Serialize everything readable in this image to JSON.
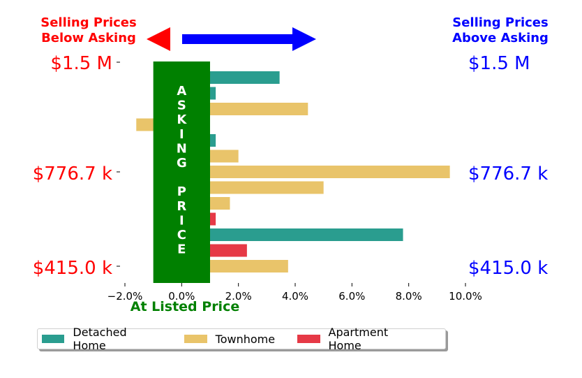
{
  "header": {
    "left_label_line1": "Selling Prices",
    "left_label_line2": "Below Asking",
    "right_label_line1": "Selling Prices",
    "right_label_line2": "Above Asking",
    "left_color": "#ff0000",
    "right_color": "#0000ff"
  },
  "price_axis": {
    "left": [
      "$1.5 M",
      "$776.7 k",
      "$415.0 k"
    ],
    "right": [
      "$1.5 M",
      "$776.7 k",
      "$415.0 k"
    ]
  },
  "asking_band": {
    "text": "ASKING PRICE",
    "color": "#008000",
    "x_range": [
      -1.0,
      1.0
    ]
  },
  "listed_label": "At Listed Price",
  "chart_data": {
    "type": "bar",
    "orientation": "horizontal",
    "xlabel": "",
    "ylabel": "",
    "xlim": [
      -2.0,
      10.0
    ],
    "x_ticks": [
      -2,
      0,
      2,
      4,
      6,
      8,
      10
    ],
    "x_tick_labels": [
      "−2.0%",
      "0.0%",
      "2.0%",
      "4.0%",
      "6.0%",
      "8.0%",
      "10.0%"
    ],
    "grid": false,
    "legend_position": "bottom",
    "bars": [
      {
        "type": "Detached Home",
        "value": 3.45
      },
      {
        "type": "Detached Home",
        "value": 1.2
      },
      {
        "type": "Townhome",
        "value": 4.45
      },
      {
        "type": "Townhome",
        "value": -1.6
      },
      {
        "type": "Detached Home",
        "value": 1.2
      },
      {
        "type": "Townhome",
        "value": 2.0
      },
      {
        "type": "Townhome",
        "value": 9.45
      },
      {
        "type": "Townhome",
        "value": 5.0
      },
      {
        "type": "Townhome",
        "value": 1.7
      },
      {
        "type": "Apartment Home",
        "value": 1.2
      },
      {
        "type": "Detached Home",
        "value": 7.8
      },
      {
        "type": "Apartment Home",
        "value": 2.3
      },
      {
        "type": "Townhome",
        "value": 3.75
      }
    ],
    "series": [
      {
        "name": "Detached Home",
        "color": "#2a9d8f"
      },
      {
        "name": "Townhome",
        "color": "#e9c46a"
      },
      {
        "name": "Apartment Home",
        "color": "#e63946"
      }
    ]
  }
}
